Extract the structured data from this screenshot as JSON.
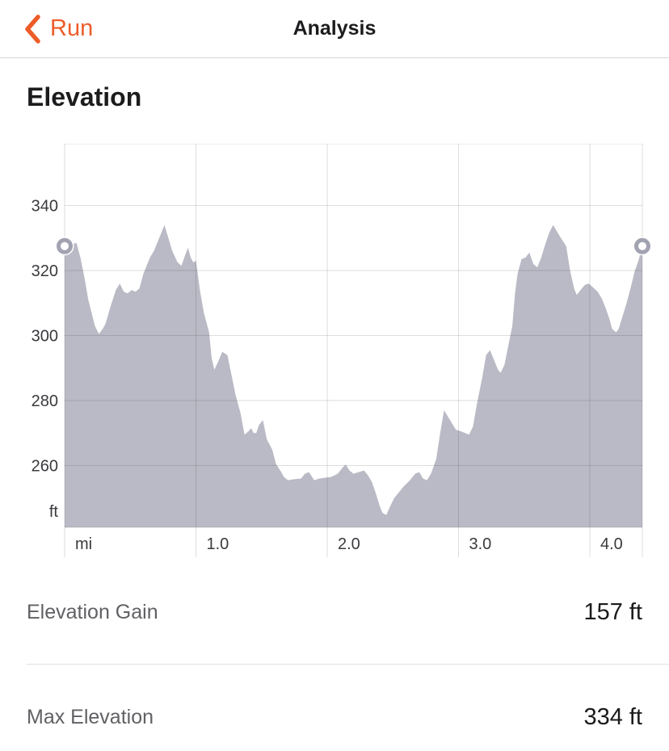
{
  "nav": {
    "back_label": "Run",
    "title": "Analysis"
  },
  "section": {
    "title": "Elevation"
  },
  "chart_data": {
    "type": "area",
    "title": "Elevation",
    "x_unit": "mi",
    "y_unit": "ft",
    "xlim": [
      0,
      4.4
    ],
    "ylim": [
      241,
      359
    ],
    "grid": true,
    "x_ticks": [
      {
        "value": 0,
        "label": "mi"
      },
      {
        "value": 1,
        "label": "1.0"
      },
      {
        "value": 2,
        "label": "2.0"
      },
      {
        "value": 3,
        "label": "3.0"
      },
      {
        "value": 4,
        "label": "4.0"
      }
    ],
    "y_ticks": [
      {
        "value": 340,
        "label": "340"
      },
      {
        "value": 320,
        "label": "320"
      },
      {
        "value": 300,
        "label": "300"
      },
      {
        "value": 280,
        "label": "280"
      },
      {
        "value": 260,
        "label": "260"
      }
    ],
    "y_axis_unit_label": "ft",
    "series": [
      {
        "name": "elevation-profile",
        "x": [
          0,
          0.05,
          0.09,
          0.12,
          0.15,
          0.18,
          0.23,
          0.26,
          0.29,
          0.31,
          0.35,
          0.39,
          0.42,
          0.45,
          0.48,
          0.51,
          0.54,
          0.57,
          0.6,
          0.65,
          0.68,
          0.71,
          0.74,
          0.76,
          0.79,
          0.82,
          0.86,
          0.89,
          0.92,
          0.94,
          0.96,
          0.98,
          1.0,
          1.03,
          1.06,
          1.1,
          1.12,
          1.14,
          1.17,
          1.2,
          1.24,
          1.27,
          1.3,
          1.34,
          1.37,
          1.4,
          1.42,
          1.44,
          1.46,
          1.48,
          1.51,
          1.54,
          1.58,
          1.61,
          1.65,
          1.67,
          1.7,
          1.75,
          1.8,
          1.83,
          1.86,
          1.9,
          1.94,
          1.99,
          2.03,
          2.08,
          2.12,
          2.14,
          2.17,
          2.2,
          2.24,
          2.28,
          2.31,
          2.34,
          2.37,
          2.4,
          2.42,
          2.45,
          2.48,
          2.51,
          2.55,
          2.58,
          2.63,
          2.67,
          2.7,
          2.73,
          2.76,
          2.79,
          2.83,
          2.86,
          2.89,
          2.92,
          2.95,
          2.98,
          3.02,
          3.05,
          3.08,
          3.11,
          3.14,
          3.18,
          3.21,
          3.24,
          3.27,
          3.3,
          3.32,
          3.35,
          3.38,
          3.41,
          3.43,
          3.45,
          3.48,
          3.51,
          3.54,
          3.57,
          3.6,
          3.63,
          3.66,
          3.69,
          3.72,
          3.75,
          3.78,
          3.82,
          3.85,
          3.88,
          3.9,
          3.93,
          3.96,
          3.99,
          4.02,
          4.06,
          4.09,
          4.12,
          4.15,
          4.17,
          4.2,
          4.22,
          4.25,
          4.28,
          4.31,
          4.34,
          4.37,
          4.4
        ],
        "y": [
          327.5,
          328,
          328.5,
          324,
          318,
          311,
          303,
          300.5,
          302,
          303.5,
          309,
          314,
          316,
          313.5,
          313,
          314,
          313.5,
          314.5,
          319,
          324,
          326,
          329,
          332,
          334,
          330,
          326,
          322.5,
          321.5,
          325,
          327,
          324,
          322.5,
          323,
          314,
          307,
          301,
          293,
          289.5,
          292,
          295,
          294,
          288,
          282,
          276,
          269.5,
          270.5,
          271.5,
          270,
          270,
          272.5,
          274,
          268,
          265,
          260.5,
          258,
          256.5,
          255.5,
          255.8,
          256,
          257.5,
          258,
          255.5,
          256,
          256.3,
          256.5,
          257.5,
          259.5,
          260.3,
          258.5,
          257.5,
          258,
          258.5,
          257,
          255,
          251.5,
          247.5,
          245.5,
          244.8,
          247.5,
          250,
          252,
          253.5,
          255.5,
          257.5,
          258,
          256,
          255.5,
          257.5,
          262,
          270,
          277,
          275,
          273,
          271,
          270.5,
          270,
          269.5,
          272,
          279,
          287,
          294,
          295.5,
          292.5,
          289.5,
          288.5,
          291,
          297,
          303,
          313,
          319,
          323.5,
          324,
          325.5,
          322,
          321,
          324,
          328,
          331.5,
          334,
          332,
          330,
          327.5,
          320,
          314.5,
          312.5,
          314,
          315.5,
          316,
          315,
          313.5,
          311.5,
          308.5,
          305,
          302,
          301,
          302,
          306,
          310,
          314.5,
          319.5,
          323,
          327.5
        ]
      }
    ],
    "markers": [
      {
        "name": "start-marker",
        "x": 0,
        "y": 327.5
      },
      {
        "name": "end-marker",
        "x": 4.4,
        "y": 327.5
      }
    ],
    "colors": {
      "area_fill": "#b9bac5",
      "grid": "rgba(0,0,0,0.13)",
      "marker_ring": "#a2a3b1",
      "tick_text": "#3a3a3e"
    }
  },
  "stats": [
    {
      "label": "Elevation Gain",
      "value": "157 ft"
    },
    {
      "label": "Max Elevation",
      "value": "334 ft"
    }
  ],
  "colors": {
    "accent_orange": "#ed5c28",
    "title_text": "#1c1c1e",
    "stat_label_gray": "#616165"
  }
}
